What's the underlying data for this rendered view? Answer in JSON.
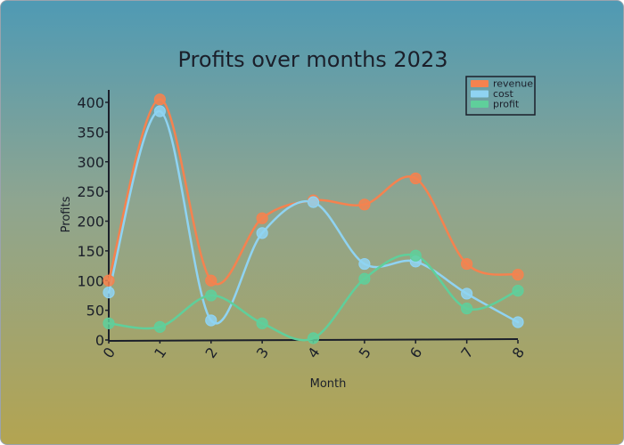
{
  "chart_data": {
    "type": "line",
    "title": "Profits over months 2023",
    "xlabel": "Month",
    "ylabel": "Profits",
    "x": [
      0,
      1,
      2,
      3,
      4,
      5,
      6,
      7,
      8
    ],
    "xlim": [
      0,
      8
    ],
    "ylim": [
      0,
      400
    ],
    "yticks": [
      0,
      50,
      100,
      150,
      200,
      250,
      300,
      350,
      400
    ],
    "legend_position": "top-right",
    "series": [
      {
        "name": "revenue",
        "color": "#f5824f",
        "values": [
          100,
          405,
          100,
          205,
          235,
          228,
          272,
          128,
          110
        ]
      },
      {
        "name": "cost",
        "color": "#8fd3f2",
        "values": [
          80,
          385,
          33,
          180,
          232,
          128,
          132,
          78,
          30
        ]
      },
      {
        "name": "profit",
        "color": "#5fcf9b",
        "values": [
          28,
          22,
          75,
          28,
          3,
          103,
          142,
          53,
          83
        ]
      }
    ]
  }
}
